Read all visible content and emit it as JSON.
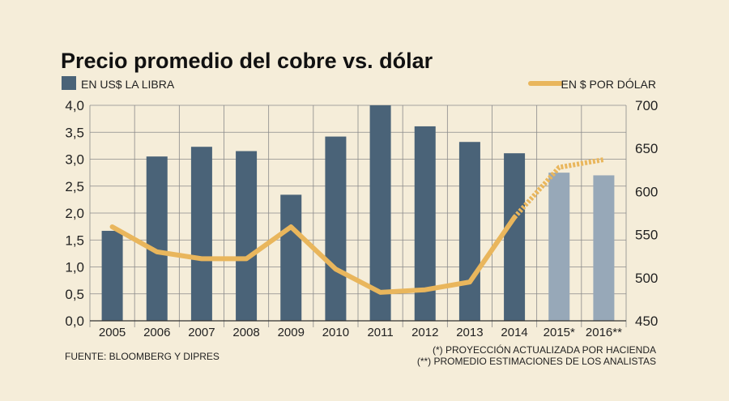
{
  "chart_data": {
    "type": "bar+line",
    "title": "Precio promedio del cobre vs. dólar",
    "categories": [
      "2005",
      "2006",
      "2007",
      "2008",
      "2009",
      "2010",
      "2011",
      "2012",
      "2013",
      "2014",
      "2015*",
      "2016**"
    ],
    "bar_series": {
      "name": "EN US$ LA LIBRA",
      "values": [
        1.67,
        3.05,
        3.23,
        3.15,
        2.34,
        3.42,
        4.0,
        3.61,
        3.32,
        3.11,
        2.75,
        2.7
      ],
      "projected_from_index": 10,
      "color": "#4a6378",
      "projected_color": "#97a8b8"
    },
    "line_series": {
      "name": "EN $ POR DÓLAR",
      "values": [
        559,
        530,
        522,
        522,
        559,
        510,
        483,
        486,
        495,
        570,
        628,
        637
      ],
      "projected_from_index": 10,
      "color": "#e9b65c"
    },
    "left_axis": {
      "ylim": [
        0,
        4.0
      ],
      "ticks": [
        "0,0",
        "0,5",
        "1,0",
        "1,5",
        "2,0",
        "2,5",
        "3,0",
        "3,5",
        "4,0"
      ]
    },
    "right_axis": {
      "ylim": [
        450,
        700
      ],
      "ticks": [
        "450",
        "500",
        "550",
        "600",
        "650",
        "700"
      ]
    },
    "notes": {
      "source": "FUENTE: BLOOMBERG Y DIPRES",
      "note1": "(*) PROYECCIÓN ACTUALIZADA POR HACIENDA",
      "note2": "(**) PROMEDIO ESTIMACIONES DE LOS ANALISTAS"
    }
  }
}
